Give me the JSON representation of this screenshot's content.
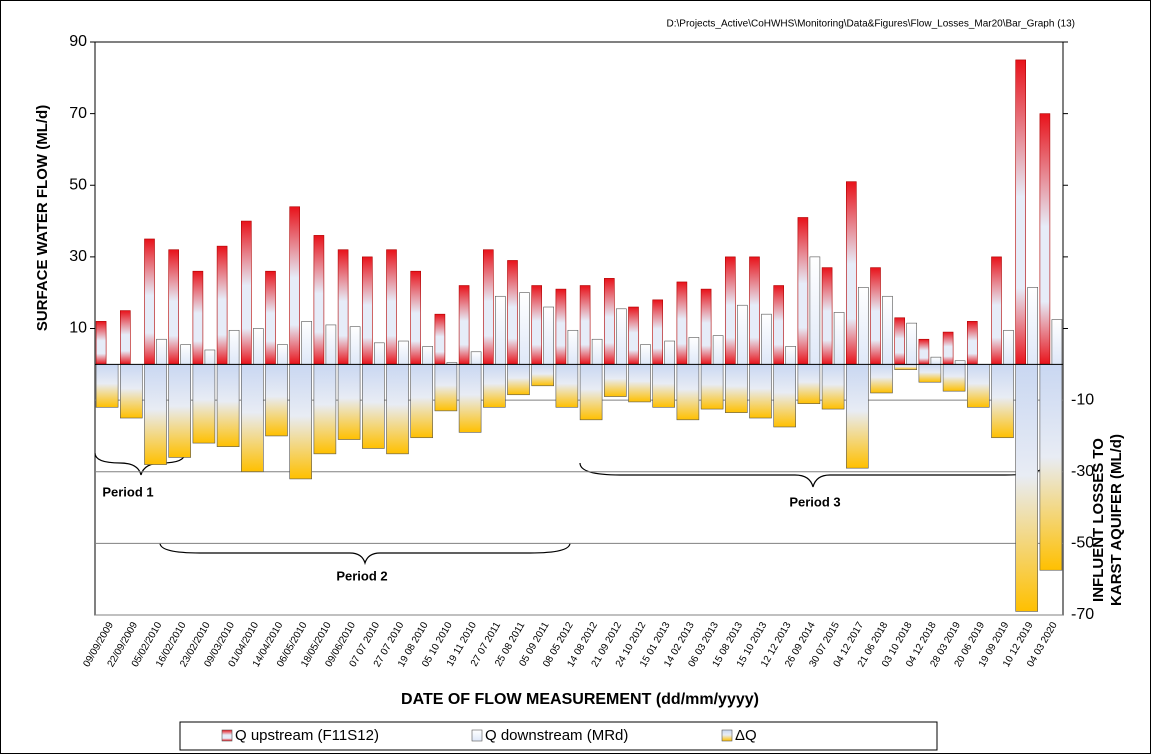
{
  "chart_data": {
    "type": "bar",
    "source_path": "D:\\Projects_Active\\CoHWHS\\Monitoring\\Data&Figures\\Flow_Losses_Mar20\\Bar_Graph  (13)",
    "xlabel": "DATE OF FLOW MEASUREMENT (dd/mm/yyyy)",
    "ylabel": "SURFACE WATER FLOW (ML/d)",
    "y2label": [
      "INFLUENT LOSSES TO",
      "KARST AQUIFER (ML/d)"
    ],
    "categories": [
      "09/09/2009",
      "22/09/2009",
      "05/02/2010",
      "16/02/2010",
      "23/02/2010",
      "09/03/2010",
      "01/04/2010",
      "14/04/2010",
      "06/05/2010",
      "18/05/2010",
      "09/06/2010",
      "07 07 2010",
      "27 07 2010",
      "19 08 2010",
      "05 10 2010",
      "19 11 2010",
      "27 07 2011",
      "25 08 2011",
      "05 09 2011",
      "08 05 2012",
      "14 08 2012",
      "21 09 2012",
      "24 10 2012",
      "15 01 2013",
      "14 02 2013",
      "06 03 2013",
      "15 08 2013",
      "15 10 2013",
      "12 12 2013",
      "26 09 2014",
      "30 07 2015",
      "04 12 2017",
      "21 06 2018",
      "03 10 2018",
      "04 12 2018",
      "28 03 2019",
      "20 06 2019",
      "19 09 2019",
      "10 12 2019",
      "04 03 2020"
    ],
    "series": [
      {
        "name": "Q upstream (F11S12)",
        "color": "#e8121a",
        "values": [
          12,
          15,
          35,
          32,
          26,
          33,
          40,
          26,
          44,
          36,
          32,
          30,
          32,
          26,
          14,
          22,
          32,
          29,
          22,
          21,
          22,
          24,
          16,
          18,
          23,
          21,
          30,
          30,
          22,
          41,
          27,
          51,
          27,
          13,
          7,
          9,
          12,
          30,
          85,
          70
        ]
      },
      {
        "name": "Q downstream (MRd)",
        "color": "#dfe8f8",
        "values": [
          0,
          0,
          7,
          5.5,
          4,
          9.5,
          10,
          5.5,
          12,
          11,
          10.5,
          6,
          6.5,
          5,
          0.5,
          3.5,
          19,
          20,
          16,
          9.5,
          7,
          15.5,
          5.5,
          6.5,
          7.5,
          8,
          16.5,
          14,
          5,
          30,
          14.5,
          21.5,
          19,
          11.5,
          2,
          1,
          0,
          9.5,
          21.5,
          12.5
        ]
      },
      {
        "name": "ΔQ",
        "color": "#ffc000",
        "axis": "y2",
        "values": [
          -12,
          -15,
          -28,
          -26,
          -22,
          -23,
          -30,
          -20,
          -32,
          -25,
          -21,
          -23.5,
          -25,
          -20.5,
          -13,
          -19,
          -12,
          -8.5,
          -6,
          -12,
          -15.5,
          -9,
          -10.5,
          -12,
          -15.5,
          -12.5,
          -13.5,
          -15,
          -17.5,
          -11,
          -12.5,
          -29,
          -8,
          -1.5,
          -5,
          -7.5,
          -12,
          -20.5,
          -69,
          -57.5
        ]
      }
    ],
    "ylim": [
      -70,
      90
    ],
    "yticks": [
      10,
      30,
      50,
      70,
      90
    ],
    "y2lim": [
      -70,
      90
    ],
    "y2ticks": [
      -10,
      -30,
      -50,
      -70
    ],
    "grid": true,
    "annotations": [
      "Period  1",
      "Period  2",
      "Period  3"
    ]
  }
}
